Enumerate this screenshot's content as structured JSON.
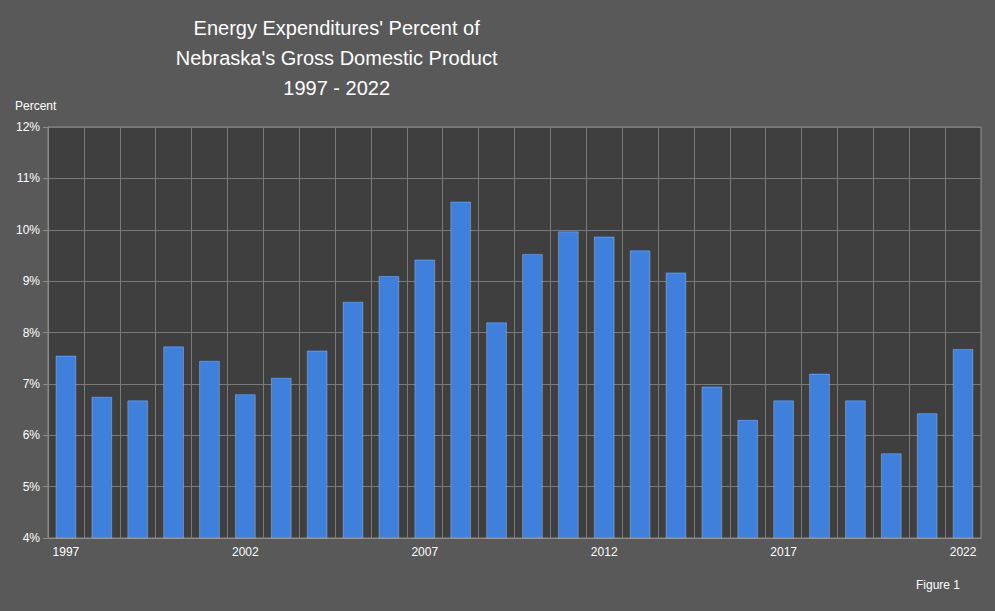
{
  "chart_data": {
    "type": "bar",
    "title": "Energy Expenditures' Percent of\nNebraska's Gross Domestic Product\n1997 - 2022",
    "y_label": "Percent",
    "annotation": "Figure 1",
    "categories": [
      "1997",
      null,
      null,
      null,
      null,
      "2002",
      null,
      null,
      null,
      null,
      "2007",
      null,
      null,
      null,
      null,
      "2012",
      null,
      null,
      null,
      null,
      "2017",
      null,
      null,
      null,
      null,
      "2022"
    ],
    "values": [
      7.55,
      6.75,
      6.68,
      7.73,
      7.45,
      6.8,
      7.12,
      7.65,
      8.6,
      9.1,
      9.42,
      10.55,
      8.2,
      9.53,
      9.97,
      9.87,
      9.6,
      9.17,
      6.95,
      6.3,
      6.68,
      7.2,
      6.68,
      5.65,
      6.43,
      7.68
    ],
    "color": "#3f80dc",
    "ylim": [
      4,
      12
    ],
    "yticks": [
      {
        "value": 4,
        "label": "4%"
      },
      {
        "value": 5,
        "label": "5%"
      },
      {
        "value": 6,
        "label": "6%"
      },
      {
        "value": 7,
        "label": "7%"
      },
      {
        "value": 8,
        "label": "8%"
      },
      {
        "value": 9,
        "label": "9%"
      },
      {
        "value": 10,
        "label": "10%"
      },
      {
        "value": 11,
        "label": "11%"
      },
      {
        "value": 12,
        "label": "12%"
      }
    ],
    "grid": true
  }
}
